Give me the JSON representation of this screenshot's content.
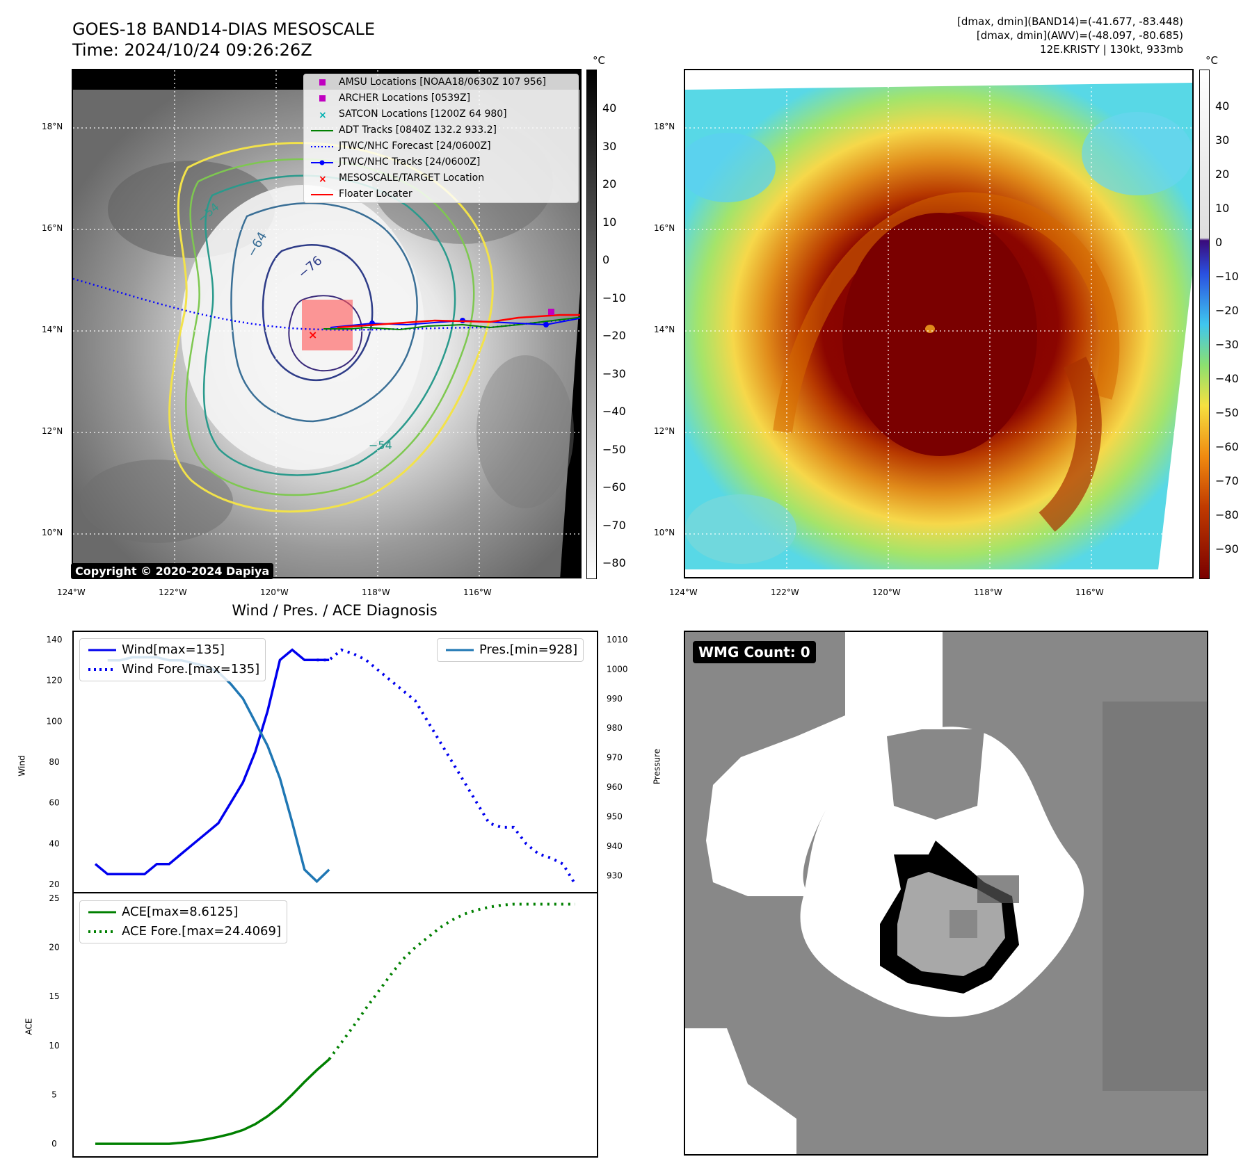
{
  "header": {
    "title_line1": "GOES-18 BAND14-DIAS MESOSCALE",
    "title_line2": "Time: 2024/10/24 09:26:26Z",
    "info_line1": "[dmax, dmin](BAND14)=(-41.677, -83.448)",
    "info_line2": "[dmax, dmin](AWV)=(-48.097, -80.685)",
    "info_line3": "12E.KRISTY | 130kt, 933mb"
  },
  "maps": {
    "lat_labels": [
      "18°N",
      "16°N",
      "14°N",
      "12°N",
      "10°N"
    ],
    "lon_labels": [
      "124°W",
      "122°W",
      "120°W",
      "118°W",
      "116°W"
    ],
    "copyright": "Copyright © 2020-2024 Dapiya",
    "contour_labels": [
      "−76",
      "−64",
      "−54",
      "−54"
    ],
    "legend": [
      {
        "label": "AMSU Locations [NOAA18/0630Z 107 956]",
        "color": "#c000c0",
        "symbol": "square"
      },
      {
        "label": "ARCHER Locations [0539Z]",
        "color": "#c000c0",
        "symbol": "square"
      },
      {
        "label": "SATCON Locations [1200Z 64 980]",
        "color": "#00b0b0",
        "symbol": "x"
      },
      {
        "label": "ADT Tracks [0840Z 132.2 933.2]",
        "color": "#008000",
        "symbol": "line"
      },
      {
        "label": "JTWC/NHC Forecast [24/0600Z]",
        "color": "#0000ff",
        "symbol": "dotted"
      },
      {
        "label": "JTWC/NHC Tracks [24/0600Z]",
        "color": "#0000ff",
        "symbol": "line-dot"
      },
      {
        "label": "MESOSCALE/TARGET Location",
        "color": "#ff0000",
        "symbol": "x"
      },
      {
        "label": "Floater Locater",
        "color": "#ff0000",
        "symbol": "line"
      }
    ],
    "cbar_unit": "°C",
    "gray_cbar_ticks": [
      "40",
      "30",
      "20",
      "10",
      "0",
      "−10",
      "−20",
      "−30",
      "−40",
      "−50",
      "−60",
      "−70",
      "−80"
    ],
    "color_cbar_ticks": [
      "40",
      "30",
      "20",
      "10",
      "0",
      "−10",
      "−20",
      "−30",
      "−40",
      "−50",
      "−60",
      "−70",
      "−80",
      "−90"
    ]
  },
  "wmg": {
    "label": "WMG Count: 0"
  },
  "chart_data": [
    {
      "type": "line",
      "title": "Wind / Pres. / ACE Diagnosis",
      "ylabel": "Wind",
      "ylim": [
        20,
        140
      ],
      "yticks": [
        "140",
        "120",
        "100",
        "80",
        "60",
        "40",
        "20"
      ],
      "y2label": "Pressure",
      "y2lim": [
        927,
        1010
      ],
      "y2ticks": [
        "1010",
        "1000",
        "990",
        "980",
        "970",
        "960",
        "950",
        "940",
        "930"
      ],
      "xlim": [
        0,
        39
      ],
      "series": [
        {
          "name": "Wind[max=135]",
          "axis": "left",
          "style": "solid",
          "color": "#0000ee",
          "x": [
            0,
            1,
            2,
            3,
            4,
            5,
            6,
            7,
            8,
            9,
            10,
            11,
            12,
            13,
            14,
            15,
            16,
            17,
            18,
            19
          ],
          "y": [
            30,
            25,
            25,
            25,
            25,
            30,
            30,
            35,
            40,
            45,
            50,
            60,
            70,
            85,
            105,
            130,
            135,
            130,
            130,
            130
          ]
        },
        {
          "name": "Wind Fore.[max=135]",
          "axis": "left",
          "style": "dotted",
          "color": "#0000ee",
          "x": [
            18,
            19,
            20,
            21,
            22,
            23,
            24,
            25,
            26,
            27,
            28,
            29,
            30,
            31,
            32,
            33,
            34,
            35,
            36,
            37,
            38,
            39
          ],
          "y": [
            130,
            130,
            135,
            133,
            130,
            125,
            120,
            115,
            110,
            100,
            90,
            80,
            70,
            60,
            50,
            48,
            48,
            40,
            35,
            33,
            30,
            20
          ]
        },
        {
          "name": "Pres.[min=928]",
          "axis": "right",
          "style": "solid",
          "color": "#1f77b4",
          "x": [
            1,
            2,
            3,
            4,
            5,
            6,
            7,
            8,
            9,
            10,
            11,
            12,
            13,
            14,
            15,
            16,
            17,
            18,
            19
          ],
          "y": [
            1003,
            1003,
            1004,
            1004,
            1004,
            1003,
            1003,
            1002,
            1001,
            999,
            995,
            990,
            982,
            974,
            963,
            948,
            932,
            928,
            932
          ]
        }
      ]
    },
    {
      "type": "line",
      "ylabel": "ACE",
      "ylim": [
        -1.2,
        25
      ],
      "yticks": [
        "25",
        "20",
        "15",
        "10",
        "5",
        "0"
      ],
      "xlim": [
        0,
        39
      ],
      "series": [
        {
          "name": "ACE[max=8.6125]",
          "style": "solid",
          "color": "#008000",
          "x": [
            0,
            1,
            2,
            3,
            4,
            5,
            6,
            7,
            8,
            9,
            10,
            11,
            12,
            13,
            14,
            15,
            16,
            17,
            18,
            19
          ],
          "y": [
            0,
            0,
            0,
            0,
            0,
            0,
            0,
            0.1,
            0.25,
            0.45,
            0.7,
            1.0,
            1.4,
            2.0,
            2.8,
            3.8,
            5.0,
            6.3,
            7.5,
            8.6
          ]
        },
        {
          "name": "ACE Fore.[max=24.4069]",
          "style": "dotted",
          "color": "#008000",
          "x": [
            19,
            20,
            21,
            22,
            23,
            24,
            25,
            26,
            27,
            28,
            29,
            30,
            31,
            32,
            33,
            34,
            35,
            36,
            37,
            38,
            39
          ],
          "y": [
            8.6,
            10.3,
            12.0,
            13.8,
            15.5,
            17.2,
            18.8,
            20.0,
            21.0,
            22.0,
            22.8,
            23.4,
            23.8,
            24.1,
            24.3,
            24.4,
            24.4,
            24.4,
            24.4,
            24.4,
            24.4
          ]
        }
      ]
    }
  ]
}
